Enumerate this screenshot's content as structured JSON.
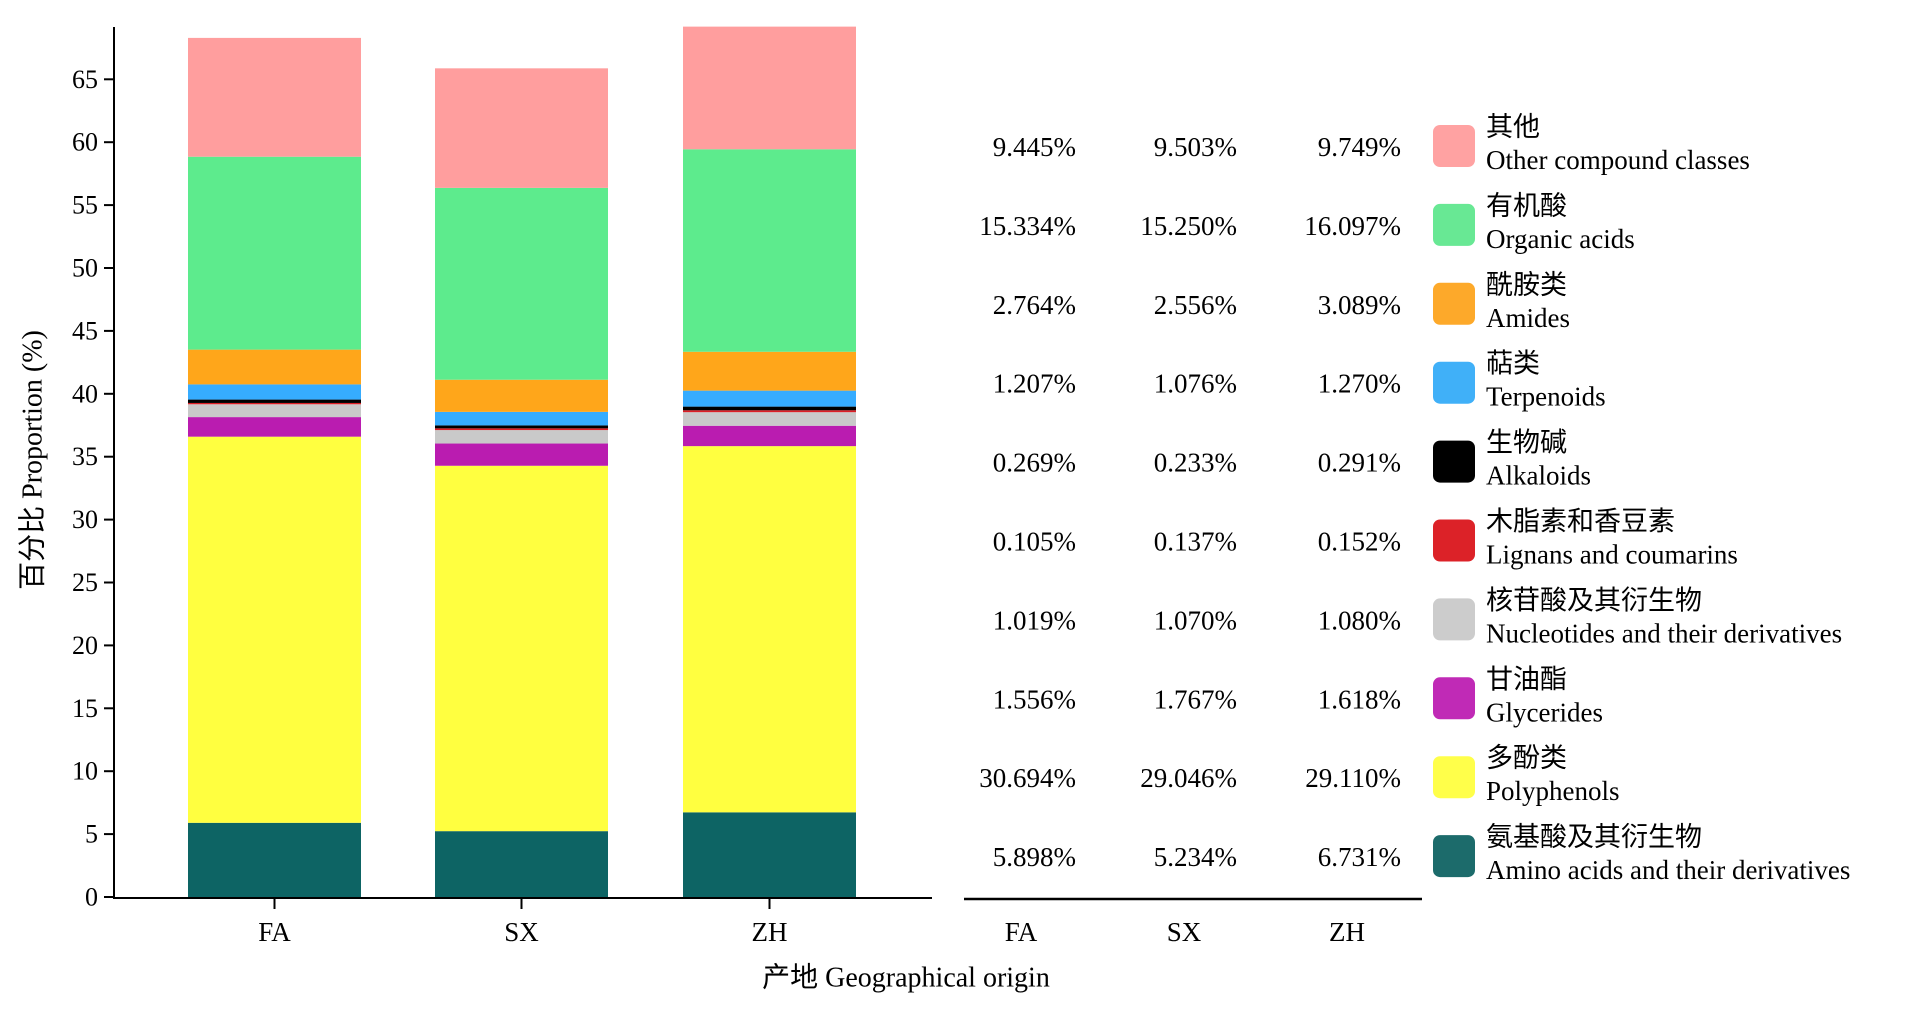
{
  "chart_data": {
    "type": "bar",
    "stacked": true,
    "categories": [
      "FA",
      "SX",
      "ZH"
    ],
    "ylabel": "百分比 Proportion (%)",
    "xlabel": "产地 Geographical origin",
    "ylim": [
      0,
      69.2
    ],
    "yticks": [
      0,
      5,
      10,
      15,
      20,
      25,
      30,
      35,
      40,
      45,
      50,
      55,
      60,
      65
    ],
    "grid": false,
    "legend_position": "right",
    "series": [
      {
        "name_cn": "氨基酸及其衍生物",
        "name_en": "Amino acids and their derivatives",
        "color": "#0d6464",
        "legend_color": "#1c6b6b",
        "values": [
          5.898,
          5.234,
          6.731
        ],
        "labels": [
          "5.898%",
          "5.234%",
          "6.731%"
        ]
      },
      {
        "name_cn": "多酚类",
        "name_en": "Polyphenols",
        "color": "#ffff40",
        "legend_color": "#ffff4a",
        "values": [
          30.694,
          29.046,
          29.11
        ],
        "labels": [
          "30.694%",
          "29.046%",
          "29.110%"
        ]
      },
      {
        "name_cn": "甘油酯",
        "name_en": "Glycerides",
        "color": "#ba1cb0",
        "legend_color": "#c02ab6",
        "values": [
          1.556,
          1.767,
          1.618
        ],
        "labels": [
          "1.556%",
          "1.767%",
          "1.618%"
        ]
      },
      {
        "name_cn": "核苷酸及其衍生物",
        "name_en": "Nucleotides and their derivatives",
        "color": "#c9c9c9",
        "legend_color": "#cccccc",
        "values": [
          1.019,
          1.07,
          1.08
        ],
        "labels": [
          "1.019%",
          "1.070%",
          "1.080%"
        ]
      },
      {
        "name_cn": "木脂素和香豆素",
        "name_en": "Lignans and coumarins",
        "color": "#dc1f26",
        "legend_color": "#dc2228",
        "values": [
          0.105,
          0.137,
          0.152
        ],
        "labels": [
          "0.105%",
          "0.137%",
          "0.152%"
        ]
      },
      {
        "name_cn": "生物碱",
        "name_en": "Alkaloids",
        "color": "#000000",
        "legend_color": "#000000",
        "values": [
          0.269,
          0.233,
          0.291
        ],
        "labels": [
          "0.269%",
          "0.233%",
          "0.291%"
        ]
      },
      {
        "name_cn": "萜类",
        "name_en": "Terpenoids",
        "color": "#36acff",
        "legend_color": "#40b0f8",
        "values": [
          1.207,
          1.076,
          1.27
        ],
        "labels": [
          "1.207%",
          "1.076%",
          "1.270%"
        ]
      },
      {
        "name_cn": "酰胺类",
        "name_en": "Amides",
        "color": "#ffa61a",
        "legend_color": "#fda92a",
        "values": [
          2.764,
          2.556,
          3.089
        ],
        "labels": [
          "2.764%",
          "2.556%",
          "3.089%"
        ]
      },
      {
        "name_cn": "有机酸",
        "name_en": "Organic acids",
        "color": "#5deb8d",
        "legend_color": "#68e894",
        "values": [
          15.334,
          15.25,
          16.097
        ],
        "labels": [
          "15.334%",
          "15.250%",
          "16.097%"
        ]
      },
      {
        "name_cn": "其他",
        "name_en": "Other compound classes",
        "color": "#ff9e9e",
        "legend_color": "#ffa2a2",
        "values": [
          9.445,
          9.503,
          9.749
        ],
        "labels": [
          "9.445%",
          "9.503%",
          "9.749%"
        ]
      }
    ],
    "table_headers": [
      "FA",
      "SX",
      "ZH"
    ]
  }
}
